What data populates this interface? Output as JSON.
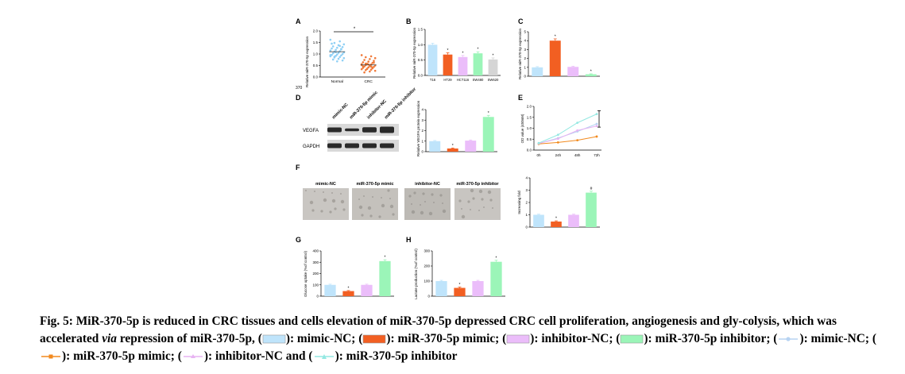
{
  "colors": {
    "mimic_nc": "#bfe4fb",
    "mimic": "#f25f22",
    "inhibitor_nc": "#ebbdfa",
    "inhibitor": "#9bf5b8",
    "normal_dots": "#8fd0f5",
    "crc_dots": "#f07a3a",
    "ncm460": "#d5d5d5",
    "line_mimic_nc": "#b7d3f2",
    "line_mimic": "#f28a1e",
    "line_inhibitor_nc": "#e7b3f2",
    "line_inhibitor": "#94e8e2"
  },
  "panels": {
    "A": {
      "letter": "A",
      "ylabel": "Relative miR-370-5p expression",
      "bottom_text": "370",
      "sig": "*",
      "chart_data": {
        "type": "scatter",
        "categories": [
          "Normal",
          "CRC"
        ],
        "ylim": [
          0,
          2.0
        ],
        "yticks": [
          "0.0",
          "0.5",
          "1.0",
          "1.5",
          "2.0"
        ],
        "series": [
          {
            "name": "Normal",
            "values": [
              1.62,
              1.55,
              1.48,
              1.42,
              1.38,
              1.33,
              1.3,
              1.27,
              1.24,
              1.2,
              1.18,
              1.15,
              1.12,
              1.1,
              1.07,
              1.05,
              1.03,
              1.0,
              0.98,
              0.96,
              0.94,
              0.92,
              0.9,
              0.87,
              0.85,
              0.82,
              0.79,
              0.76,
              0.72,
              0.68,
              1.45,
              1.22,
              1.08,
              0.95,
              1.35,
              0.88
            ]
          },
          {
            "name": "CRC",
            "values": [
              0.95,
              0.9,
              0.86,
              0.82,
              0.78,
              0.74,
              0.7,
              0.67,
              0.64,
              0.61,
              0.58,
              0.56,
              0.54,
              0.52,
              0.5,
              0.48,
              0.46,
              0.44,
              0.42,
              0.4,
              0.38,
              0.36,
              0.34,
              0.32,
              0.3,
              0.27,
              0.24,
              0.2,
              0.62,
              0.55,
              0.47,
              0.41,
              0.35,
              0.52,
              0.45,
              0.58
            ]
          }
        ]
      }
    },
    "B": {
      "letter": "B",
      "ylabel": "Relative miR-370-5p expression",
      "chart_data": {
        "type": "bar",
        "categories": [
          "T16",
          "HT29",
          "HCT116",
          "SW480",
          "SW620"
        ],
        "values": [
          1.0,
          0.68,
          0.6,
          0.72,
          0.52
        ],
        "errors": [
          0.05,
          0.06,
          0.05,
          0.05,
          0.05
        ],
        "sig": [
          "",
          "*",
          "*",
          "*",
          "*"
        ],
        "ylim": [
          0,
          1.5
        ],
        "yticks": [
          "0.0",
          "0.5",
          "1.0",
          "1.5"
        ]
      }
    },
    "C": {
      "letter": "C",
      "ylabel": "Relative miR-370-5p expression",
      "chart_data": {
        "type": "bar",
        "categories": [
          "",
          "",
          "",
          ""
        ],
        "values": [
          1.0,
          4.0,
          1.05,
          0.22
        ],
        "errors": [
          0.08,
          0.2,
          0.08,
          0.05
        ],
        "sig": [
          "",
          "*",
          "",
          "*"
        ],
        "ylim": [
          0,
          5
        ],
        "yticks": [
          "0",
          "1",
          "2",
          "3",
          "4",
          "5"
        ]
      }
    },
    "D": {
      "letter": "D",
      "lanes": [
        "mimic-NC",
        "miR-370-5p mimic",
        "inhibitor-NC",
        "miR-370-5p inhibitor"
      ],
      "rows": [
        "VEGFA",
        "GAPDH"
      ],
      "ylabel": "Relative VEGFA protein expression",
      "chart_data": {
        "type": "bar",
        "categories": [
          "",
          "",
          "",
          ""
        ],
        "values": [
          1.0,
          0.3,
          1.05,
          3.3
        ],
        "errors": [
          0.06,
          0.05,
          0.06,
          0.15
        ],
        "sig": [
          "",
          "*",
          "",
          "*"
        ],
        "ylim": [
          0,
          4
        ],
        "yticks": [
          "0",
          "1",
          "2",
          "3",
          "4"
        ]
      }
    },
    "E": {
      "letter": "E",
      "ylabel": "OD value (450nM)",
      "chart_data": {
        "type": "line",
        "x": [
          "0h",
          "24h",
          "48h",
          "72h"
        ],
        "ylim": [
          0,
          2.0
        ],
        "yticks": [
          "0.0",
          "0.5",
          "1.0",
          "1.5",
          "2.0"
        ],
        "series": [
          {
            "values": [
              0.3,
              0.55,
              0.85,
              1.2
            ]
          },
          {
            "values": [
              0.28,
              0.35,
              0.45,
              0.62
            ]
          },
          {
            "values": [
              0.3,
              0.52,
              0.9,
              1.1
            ]
          },
          {
            "values": [
              0.32,
              0.7,
              1.25,
              1.65
            ]
          }
        ]
      }
    },
    "F": {
      "letter": "F",
      "images": [
        "mimic-NC",
        "miR-370-5p mimic",
        "inhibitor-NC",
        "miR-370-5p inhibitor"
      ],
      "ylabel": "Increasing fold",
      "chart_data": {
        "type": "bar",
        "categories": [
          "",
          "",
          "",
          ""
        ],
        "values": [
          1.0,
          0.45,
          1.0,
          2.8
        ],
        "errors": [
          0.05,
          0.06,
          0.05,
          0.12
        ],
        "sig": [
          "",
          "*",
          "",
          "#"
        ],
        "ylim": [
          0,
          4
        ],
        "yticks": [
          "0",
          "1",
          "2",
          "3",
          "4"
        ]
      }
    },
    "G": {
      "letter": "G",
      "ylabel": "Glucose uptake (%of control)",
      "chart_data": {
        "type": "bar",
        "categories": [
          "",
          "",
          "",
          ""
        ],
        "values": [
          100,
          45,
          100,
          310
        ],
        "errors": [
          6,
          5,
          6,
          12
        ],
        "sig": [
          "",
          "*",
          "",
          "*"
        ],
        "ylim": [
          0,
          400
        ],
        "yticks": [
          "0",
          "100",
          "200",
          "300",
          "400"
        ]
      }
    },
    "H": {
      "letter": "H",
      "ylabel": "Lactate production (%of control)",
      "chart_data": {
        "type": "bar",
        "categories": [
          "",
          "",
          "",
          ""
        ],
        "values": [
          100,
          55,
          100,
          228
        ],
        "errors": [
          5,
          6,
          5,
          10
        ],
        "sig": [
          "",
          "*",
          "",
          "*"
        ],
        "ylim": [
          0,
          300
        ],
        "yticks": [
          "0",
          "100",
          "200",
          "300"
        ]
      }
    }
  },
  "caption": {
    "part1": "Fig. 5: MiR-370-5p is reduced in CRC tissues and cells elevation of miR-370-5p depressed CRC cell proliferation, angiogenesis and gly-colysis, which was accelerated ",
    "via": "via",
    "part2": " repression of miR-370-5p, (",
    "t1": "): mimic-NC; (",
    "t2": "): miR-370-5p mimic; (",
    "t3": "): inhibitor-NC; (",
    "t4": "): miR-370-5p inhibitor; (",
    "t5": "): mimic-NC; (",
    "t6": "): miR-370-5p mimic; (",
    "t7": "): inhibitor-NC and (",
    "t8": "): miR-370-5p inhibitor"
  }
}
